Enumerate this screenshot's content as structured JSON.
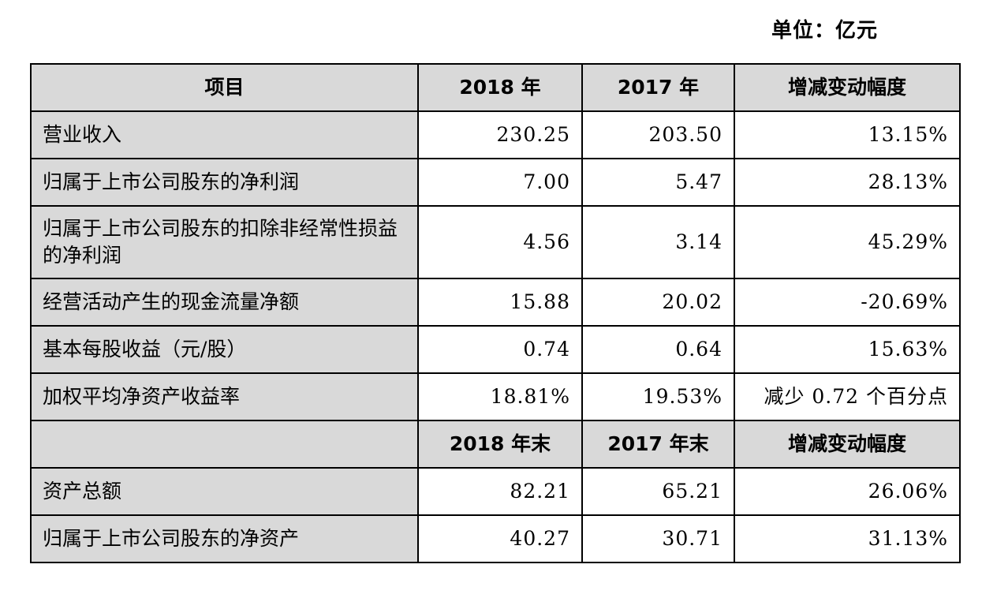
{
  "unit_label": "单位：亿元",
  "header": {
    "item": "项目",
    "col1": "2018 年",
    "col2": "2017 年",
    "col3": "增减变动幅度"
  },
  "rows": [
    {
      "label": "营业收入",
      "v2018": "230.25",
      "v2017": "203.50",
      "change": "13.15%"
    },
    {
      "label": "归属于上市公司股东的净利润",
      "v2018": "7.00",
      "v2017": "5.47",
      "change": "28.13%"
    },
    {
      "label": "归属于上市公司股东的扣除非经常性损益的净利润",
      "v2018": "4.56",
      "v2017": "3.14",
      "change": "45.29%"
    },
    {
      "label": "经营活动产生的现金流量净额",
      "v2018": "15.88",
      "v2017": "20.02",
      "change": "-20.69%"
    },
    {
      "label": "基本每股收益（元/股）",
      "v2018": "0.74",
      "v2017": "0.64",
      "change": "15.63%"
    },
    {
      "label": "加权平均净资产收益率",
      "v2018": "18.81%",
      "v2017": "19.53%",
      "change": "减少 0.72 个百分点"
    }
  ],
  "header2": {
    "item": "",
    "col1": "2018 年末",
    "col2": "2017 年末",
    "col3": "增减变动幅度"
  },
  "rows2": [
    {
      "label": "资产总额",
      "v2018": "82.21",
      "v2017": "65.21",
      "change": "26.06%"
    },
    {
      "label": "归属于上市公司股东的净资产",
      "v2018": "40.27",
      "v2017": "30.71",
      "change": "31.13%"
    }
  ]
}
